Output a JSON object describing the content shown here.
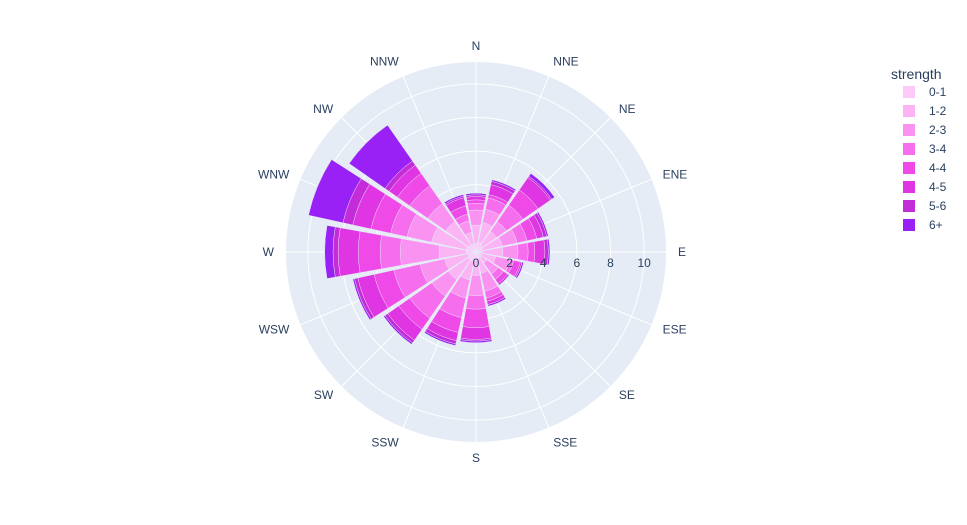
{
  "chart_data": {
    "type": "barpolar",
    "angular_categories": [
      "N",
      "NNE",
      "NE",
      "ENE",
      "E",
      "ESE",
      "SE",
      "SSE",
      "S",
      "SSW",
      "SW",
      "WSW",
      "W",
      "WNW",
      "NW",
      "NNW"
    ],
    "radial_ticks": [
      "0",
      "2",
      "4",
      "6",
      "8",
      "10"
    ],
    "radial_range": [
      0,
      11.3
    ],
    "legend_title": "strength",
    "series": [
      {
        "name": "0-1",
        "color": "#fdc9f9",
        "values": [
          0.5,
          0.6,
          0.5,
          0.4,
          0.4,
          0.3,
          0.4,
          0.4,
          0.5,
          0.6,
          0.6,
          0.5,
          0.6,
          0.6,
          0.5,
          0.5
        ]
      },
      {
        "name": "1-2",
        "color": "#fbb5f5",
        "values": [
          1.6,
          1.8,
          1.5,
          1.6,
          1.6,
          1.2,
          0.8,
          1.3,
          1.4,
          1.7,
          2.0,
          1.9,
          2.2,
          2.7,
          2.2,
          1.2
        ]
      },
      {
        "name": "2-3",
        "color": "#fa92f2",
        "values": [
          2.5,
          2.6,
          2.2,
          2.5,
          2.5,
          2.1,
          1.6,
          2.4,
          2.6,
          2.8,
          3.2,
          3.4,
          4.5,
          4.2,
          3.5,
          1.9
        ]
      },
      {
        "name": "3-4",
        "color": "#f66ded",
        "values": [
          2.9,
          3.3,
          3.4,
          3.1,
          3.1,
          2.3,
          2.0,
          2.8,
          3.4,
          4.0,
          4.8,
          5.0,
          5.7,
          5.2,
          4.8,
          2.3
        ]
      },
      {
        "name": "4-4",
        "color": "#ef4ae7",
        "values": [
          3.1,
          3.5,
          4.5,
          3.7,
          3.5,
          2.7,
          2.3,
          3.0,
          4.5,
          4.9,
          5.6,
          6.2,
          7.0,
          6.4,
          5.7,
          2.8
        ]
      },
      {
        "name": "4-5",
        "color": "#e035e2",
        "values": [
          3.3,
          4.1,
          5.4,
          4.1,
          4.1,
          2.8,
          2.3,
          3.2,
          5.2,
          5.4,
          6.4,
          7.2,
          8.2,
          7.5,
          6.3,
          3.3
        ]
      },
      {
        "name": "5-6",
        "color": "#c42bd9",
        "values": [
          3.4,
          4.3,
          5.5,
          4.3,
          4.3,
          2.8,
          2.4,
          3.2,
          5.3,
          5.6,
          6.6,
          7.4,
          8.5,
          8.1,
          6.6,
          3.4
        ]
      },
      {
        "name": "6+",
        "color": "#9a21f5",
        "values": [
          3.5,
          4.4,
          5.7,
          4.4,
          4.4,
          2.9,
          2.4,
          3.3,
          5.4,
          5.7,
          6.7,
          7.5,
          9.0,
          10.2,
          9.2,
          3.5
        ]
      }
    ],
    "polar_bgcolor": "#e5ecf6",
    "grid_color": "#ffffff",
    "font_color": "#2a3f5f"
  }
}
